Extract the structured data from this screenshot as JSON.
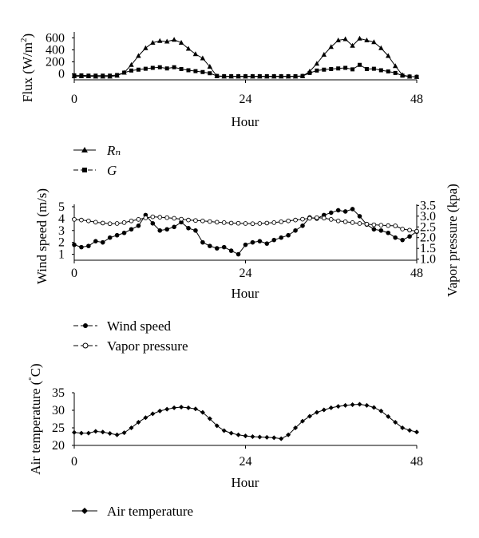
{
  "chart_data": [
    {
      "type": "line",
      "xlabel": "Hour",
      "ylabel": "Flux (W/m²)",
      "xlim": [
        0,
        48
      ],
      "ylim": [
        -100,
        700
      ],
      "xticks": [
        "0",
        "24",
        "48"
      ],
      "yticks": [
        "0",
        "200",
        "400",
        "600"
      ],
      "grid": false,
      "legend_position": "below",
      "series": [
        {
          "name": "Rₙ",
          "marker": "triangle",
          "x": [
            0,
            1,
            2,
            3,
            4,
            5,
            6,
            7,
            8,
            9,
            10,
            11,
            12,
            13,
            14,
            15,
            16,
            17,
            18,
            19,
            20,
            21,
            22,
            23,
            24,
            25,
            26,
            27,
            28,
            29,
            30,
            31,
            32,
            33,
            34,
            35,
            36,
            37,
            38,
            39,
            40,
            41,
            42,
            43,
            44,
            45,
            46,
            47,
            48
          ],
          "values": [
            -40,
            -40,
            -40,
            -45,
            -45,
            -45,
            -30,
            20,
            150,
            300,
            430,
            520,
            550,
            540,
            570,
            520,
            420,
            330,
            260,
            120,
            -40,
            -45,
            -45,
            -45,
            -45,
            -45,
            -45,
            -45,
            -45,
            -45,
            -45,
            -45,
            -40,
            40,
            170,
            320,
            450,
            560,
            580,
            470,
            590,
            560,
            530,
            430,
            300,
            130,
            -20,
            -45,
            -50
          ]
        },
        {
          "name": "G",
          "marker": "square",
          "x": [
            0,
            1,
            2,
            3,
            4,
            5,
            6,
            7,
            8,
            9,
            10,
            11,
            12,
            13,
            14,
            15,
            16,
            17,
            18,
            19,
            20,
            21,
            22,
            23,
            24,
            25,
            26,
            27,
            28,
            29,
            30,
            31,
            32,
            33,
            34,
            35,
            36,
            37,
            38,
            39,
            40,
            41,
            42,
            43,
            44,
            45,
            46,
            47,
            48
          ],
          "values": [
            -25,
            -25,
            -30,
            -30,
            -30,
            -30,
            -20,
            20,
            55,
            70,
            85,
            100,
            110,
            90,
            110,
            80,
            60,
            45,
            30,
            10,
            -35,
            -40,
            -40,
            -40,
            -40,
            -40,
            -40,
            -40,
            -40,
            -40,
            -40,
            -40,
            -35,
            15,
            55,
            70,
            80,
            90,
            100,
            75,
            150,
            80,
            85,
            60,
            40,
            15,
            -30,
            -45,
            -50
          ]
        }
      ]
    },
    {
      "type": "line",
      "xlabel": "Hour",
      "ylabel": "Wind speed (m/s)",
      "y2label": "Vapor pressure (kpa)",
      "xlim": [
        0,
        48
      ],
      "ylim": [
        0.5,
        5.2
      ],
      "y2lim": [
        0.95,
        3.55
      ],
      "xticks": [
        "0",
        "24",
        "48"
      ],
      "yticks": [
        "1",
        "2",
        "3",
        "4",
        "5"
      ],
      "y2ticks": [
        "1.0",
        "1.5",
        "2.0",
        "2.5",
        "3.0",
        "3.5"
      ],
      "grid": false,
      "legend_position": "below",
      "series": [
        {
          "name": "Wind speed",
          "axis": "left",
          "marker": "filled-circle",
          "x": [
            0,
            1,
            2,
            3,
            4,
            5,
            6,
            7,
            8,
            9,
            10,
            11,
            12,
            13,
            14,
            15,
            16,
            17,
            18,
            19,
            20,
            21,
            22,
            23,
            24,
            25,
            26,
            27,
            28,
            29,
            30,
            31,
            32,
            33,
            34,
            35,
            36,
            37,
            38,
            39,
            40,
            41,
            42,
            43,
            44,
            45,
            46,
            47,
            48
          ],
          "values": [
            1.8,
            1.6,
            1.7,
            2.1,
            2.0,
            2.4,
            2.6,
            2.8,
            3.1,
            3.4,
            4.3,
            3.6,
            3.0,
            3.1,
            3.3,
            3.7,
            3.2,
            3.0,
            2.0,
            1.7,
            1.5,
            1.6,
            1.3,
            1.0,
            1.8,
            2.0,
            2.1,
            1.9,
            2.2,
            2.4,
            2.6,
            3.0,
            3.4,
            4.1,
            4.0,
            4.3,
            4.5,
            4.7,
            4.6,
            4.8,
            4.2,
            3.5,
            3.1,
            3.0,
            2.8,
            2.4,
            2.2,
            2.5,
            2.9
          ]
        },
        {
          "name": "Vapor pressure",
          "axis": "right",
          "marker": "open-circle",
          "x": [
            0,
            1,
            2,
            3,
            4,
            5,
            6,
            7,
            8,
            9,
            10,
            11,
            12,
            13,
            14,
            15,
            16,
            17,
            18,
            19,
            20,
            21,
            22,
            23,
            24,
            25,
            26,
            27,
            28,
            29,
            30,
            31,
            32,
            33,
            34,
            35,
            36,
            37,
            38,
            39,
            40,
            41,
            42,
            43,
            44,
            45,
            46,
            47,
            48
          ],
          "values": [
            2.85,
            2.82,
            2.78,
            2.72,
            2.68,
            2.65,
            2.66,
            2.7,
            2.78,
            2.85,
            2.92,
            2.97,
            2.95,
            2.93,
            2.9,
            2.86,
            2.82,
            2.8,
            2.78,
            2.75,
            2.72,
            2.7,
            2.68,
            2.67,
            2.66,
            2.65,
            2.66,
            2.68,
            2.7,
            2.74,
            2.78,
            2.82,
            2.86,
            2.9,
            2.93,
            2.91,
            2.85,
            2.78,
            2.74,
            2.7,
            2.66,
            2.63,
            2.6,
            2.58,
            2.56,
            2.55,
            2.4,
            2.35,
            2.3
          ]
        }
      ]
    },
    {
      "type": "line",
      "xlabel": "Hour",
      "ylabel": "Air temperature (°C)",
      "xlim": [
        0,
        48
      ],
      "ylim": [
        20,
        35
      ],
      "xticks": [
        "0",
        "24",
        "48"
      ],
      "yticks": [
        "20",
        "25",
        "30",
        "35"
      ],
      "grid": false,
      "legend_position": "below",
      "series": [
        {
          "name": "Air temperature",
          "marker": "diamond",
          "x": [
            0,
            1,
            2,
            3,
            4,
            5,
            6,
            7,
            8,
            9,
            10,
            11,
            12,
            13,
            14,
            15,
            16,
            17,
            18,
            19,
            20,
            21,
            22,
            23,
            24,
            25,
            26,
            27,
            28,
            29,
            30,
            31,
            32,
            33,
            34,
            35,
            36,
            37,
            38,
            39,
            40,
            41,
            42,
            43,
            44,
            45,
            46,
            47,
            48
          ],
          "values": [
            23.7,
            23.5,
            23.5,
            24.0,
            23.8,
            23.4,
            23.0,
            23.6,
            25.0,
            26.6,
            27.9,
            29.0,
            29.8,
            30.3,
            30.7,
            30.9,
            30.7,
            30.4,
            29.4,
            27.6,
            25.6,
            24.2,
            23.5,
            23.0,
            22.7,
            22.5,
            22.4,
            22.3,
            22.2,
            21.9,
            23.0,
            25.0,
            26.9,
            28.3,
            29.4,
            30.1,
            30.7,
            31.1,
            31.4,
            31.6,
            31.7,
            31.4,
            30.8,
            29.8,
            28.2,
            26.6,
            25.0,
            24.3,
            23.8
          ]
        }
      ]
    }
  ]
}
